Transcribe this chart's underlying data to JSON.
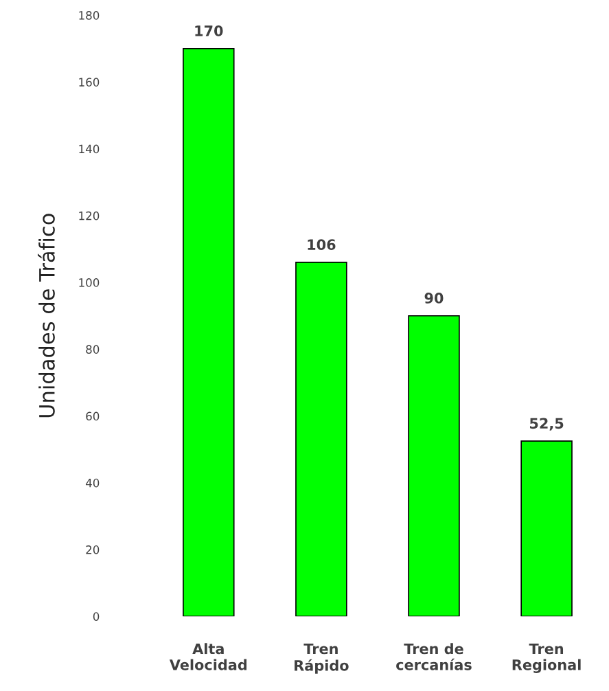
{
  "chart_data": {
    "type": "bar",
    "ylabel": "Unidades de Tráfico",
    "categories": [
      "Alta\nVelocidad",
      "Tren\nRápido",
      "Tren de\ncercanías",
      "Tren\nRegional"
    ],
    "values": [
      170,
      106,
      90,
      52.5
    ],
    "value_labels": [
      "170",
      "106",
      "90",
      "52,5"
    ],
    "color": "#00ff00",
    "ylim": [
      0,
      180
    ],
    "yticks": [
      0,
      20,
      40,
      60,
      80,
      100,
      120,
      140,
      160,
      180
    ],
    "grid": false,
    "legend": false
  }
}
